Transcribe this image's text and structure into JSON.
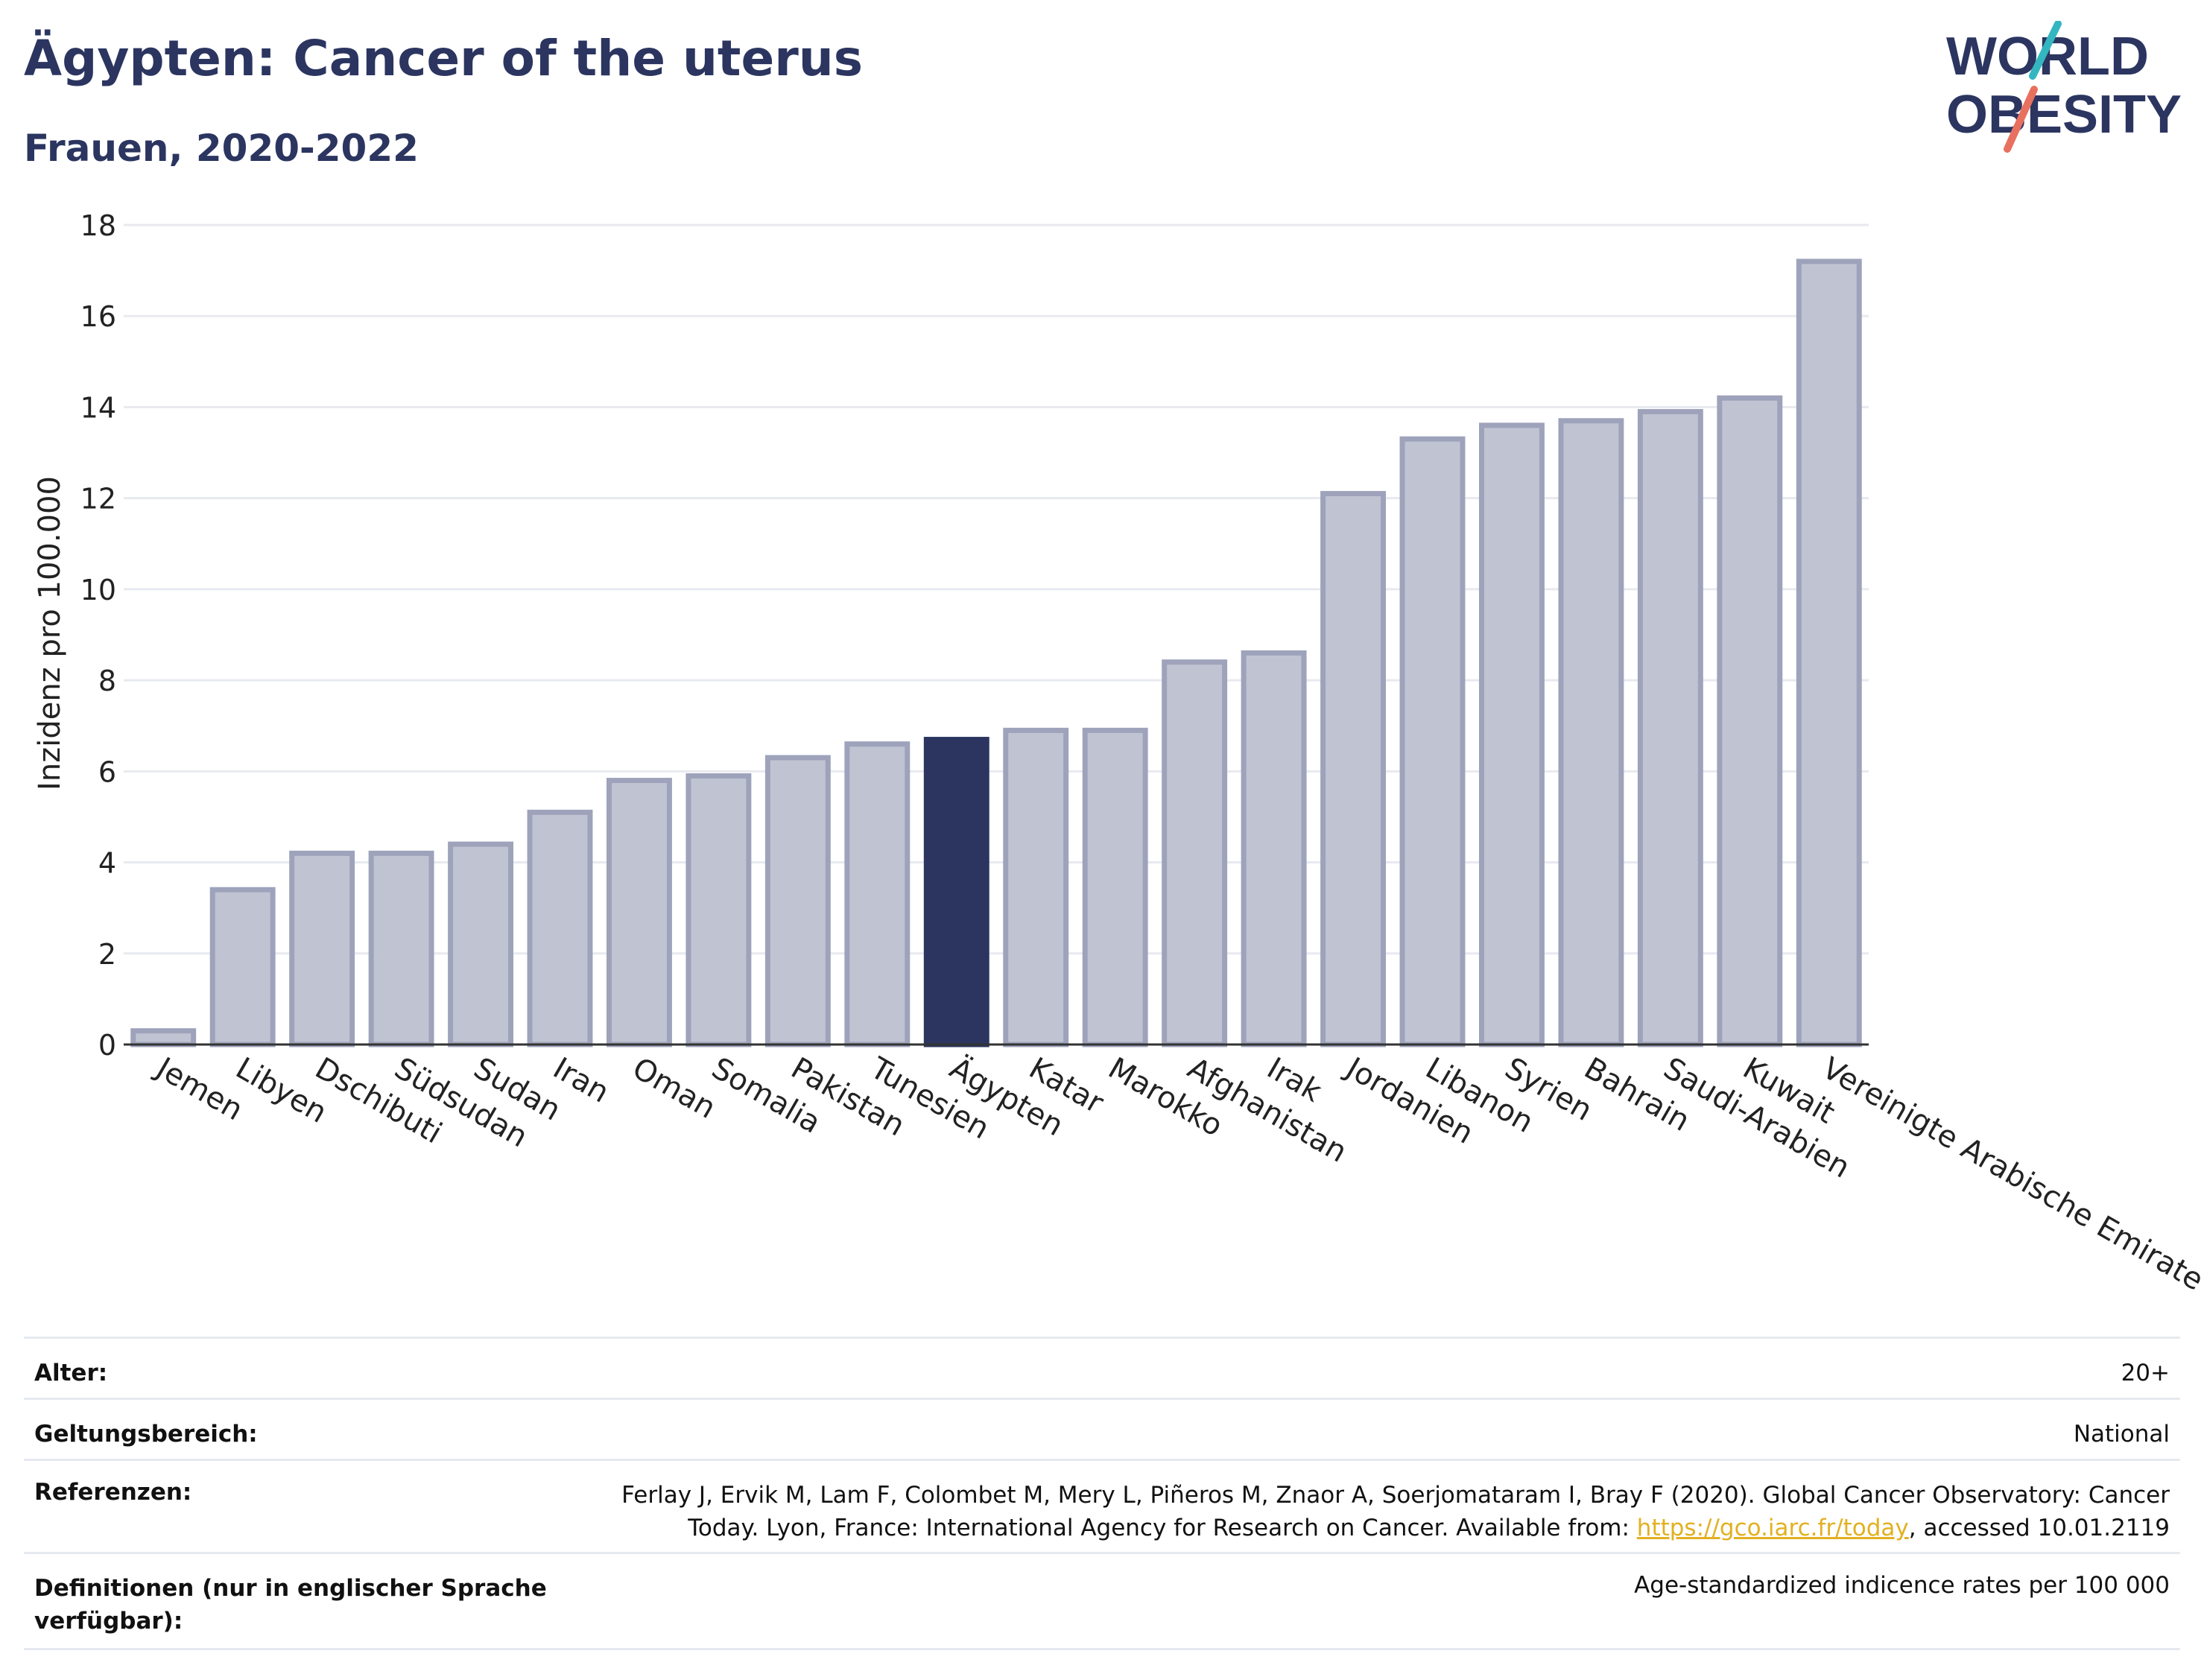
{
  "header": {
    "title": "Ägypten: Cancer of the uterus",
    "subtitle": "Frauen, 2020-2022"
  },
  "logo": {
    "line1": "WORLD",
    "line2": "OBESITY",
    "colors": {
      "text": "#2b3560",
      "slash_teal": "#34b6c0",
      "slash_coral": "#e8705f"
    }
  },
  "chart_data": {
    "type": "bar",
    "ylabel": "Inzidenz pro 100.000",
    "xlabel": "",
    "ylim": [
      0,
      18
    ],
    "yticks": [
      0,
      2,
      4,
      6,
      8,
      10,
      12,
      14,
      16,
      18
    ],
    "grid": true,
    "highlight": "Ägypten",
    "colors": {
      "bar": "#c0c4d2",
      "bar_edge": "#9ea3bb",
      "highlight": "#2b3560"
    },
    "categories": [
      "Jemen",
      "Libyen",
      "Dschibuti",
      "Südsudan",
      "Sudan",
      "Iran",
      "Oman",
      "Somalia",
      "Pakistan",
      "Tunesien",
      "Ägypten",
      "Katar",
      "Marokko",
      "Afghanistan",
      "Irak",
      "Jordanien",
      "Libanon",
      "Syrien",
      "Bahrain",
      "Saudi-Arabien",
      "Kuwait",
      "Vereinigte Arabische Emirate"
    ],
    "values": [
      0.3,
      3.4,
      4.2,
      4.2,
      4.4,
      5.1,
      5.8,
      5.9,
      6.3,
      6.6,
      6.7,
      6.9,
      6.9,
      8.4,
      8.6,
      12.1,
      13.3,
      13.6,
      13.7,
      13.9,
      14.2,
      17.2
    ]
  },
  "meta": {
    "age_label": "Alter:",
    "age_value": "20+",
    "scope_label": "Geltungsbereich:",
    "scope_value": "National",
    "ref_label": "Referenzen:",
    "ref_text_line1": "Ferlay J, Ervik M, Lam F, Colombet M, Mery L, Piñeros M, Znaor A, Soerjomataram I, Bray F (2020). Global Cancer Observatory: Cancer",
    "ref_text_line2_pre": "Today. Lyon, France: International Agency for Research on Cancer. Available from: ",
    "ref_link": "https://gco.iarc.fr/today",
    "ref_text_line2_post": ", accessed 10.01.2119",
    "def_label_line1": "Definitionen (nur in englischer Sprache",
    "def_label_line2": "verfügbar):",
    "def_value": "Age-standardized indicence rates per 100 000"
  }
}
